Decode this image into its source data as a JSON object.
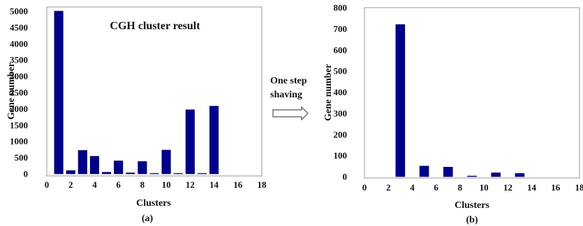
{
  "chart_data": [
    {
      "type": "bar",
      "title": "CGH cluster result",
      "xlabel": "Clusters",
      "ylabel": "Gene number",
      "panel_label": "(a)",
      "xlim": [
        0,
        18
      ],
      "ylim": [
        0,
        5000
      ],
      "xticks": [
        0,
        2,
        4,
        6,
        8,
        10,
        12,
        14,
        16,
        18
      ],
      "yticks": [
        0,
        500,
        1000,
        1500,
        2000,
        2500,
        3000,
        3500,
        4000,
        4500,
        5000
      ],
      "x": [
        1,
        2,
        3,
        4,
        5,
        6,
        7,
        8,
        9,
        10,
        11,
        12,
        13,
        14
      ],
      "values": [
        5000,
        100,
        720,
        540,
        50,
        400,
        30,
        380,
        10,
        730,
        10,
        1970,
        10,
        2080
      ],
      "bar_color": "#00008b",
      "grid": false
    },
    {
      "type": "bar",
      "title": "",
      "xlabel": "Clusters",
      "ylabel": "Gene number",
      "panel_label": "(b)",
      "xlim": [
        0,
        18
      ],
      "ylim": [
        0,
        800
      ],
      "xticks": [
        0,
        2,
        4,
        6,
        8,
        10,
        12,
        14,
        16,
        18
      ],
      "yticks": [
        0,
        100,
        200,
        300,
        400,
        500,
        600,
        700,
        800
      ],
      "x": [
        3,
        5,
        7,
        9,
        11,
        13
      ],
      "values": [
        720,
        50,
        45,
        3,
        18,
        15
      ],
      "bar_color": "#00008b",
      "grid": false
    }
  ],
  "annotation": {
    "line1": "One step",
    "line2": "shaving"
  }
}
